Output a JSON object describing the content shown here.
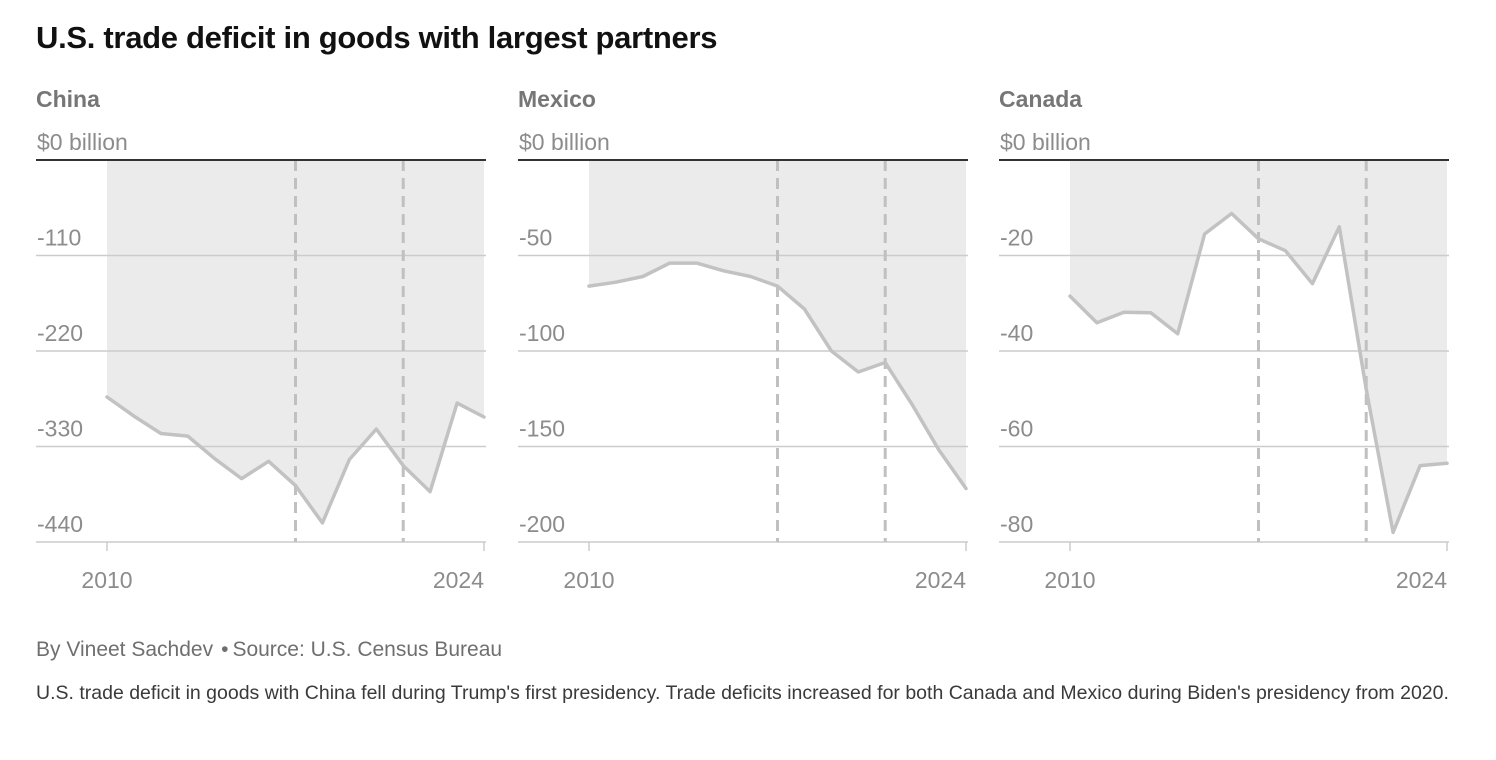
{
  "title": "U.S. trade deficit in goods with largest partners",
  "byline": {
    "author": "By Vineet Sachdev",
    "separator": "•",
    "source": "Source: U.S. Census Bureau"
  },
  "note": "U.S. trade deficit in goods with China fell during Trump's first presidency. Trade deficits increased for both Canada and Mexico during Biden's presidency from 2020.",
  "colors": {
    "line": "#c2c2c2",
    "area": "#ebebeb",
    "grid": "#cccccc",
    "zero": "#333333",
    "divider": "#c0c0c0"
  },
  "chart_data": [
    {
      "type": "line",
      "title": "China",
      "x": [
        2010,
        2011,
        2012,
        2013,
        2014,
        2015,
        2016,
        2017,
        2018,
        2019,
        2020,
        2021,
        2022,
        2023,
        2024
      ],
      "series": [
        {
          "values": [
            -273,
            -295,
            -315,
            -318,
            -344,
            -367,
            -347,
            -375,
            -418,
            -345,
            -310,
            -352,
            -382,
            -280,
            -296
          ]
        }
      ],
      "ylim": [
        -440,
        0
      ],
      "yticks": [
        0,
        -110,
        -220,
        -330,
        -440
      ],
      "ytick_labels": [
        "$0 billion",
        "-110",
        "-220",
        "-330",
        "-440"
      ],
      "xticks": [
        2010,
        2024
      ],
      "xtick_labels": [
        "2010",
        "2024"
      ],
      "reference_lines": [
        2017,
        2021
      ],
      "grid": true
    },
    {
      "type": "line",
      "title": "Mexico",
      "x": [
        2010,
        2011,
        2012,
        2013,
        2014,
        2015,
        2016,
        2017,
        2018,
        2019,
        2020,
        2021,
        2022,
        2023,
        2024
      ],
      "series": [
        {
          "values": [
            -66,
            -64,
            -61,
            -54,
            -54,
            -58,
            -61,
            -66,
            -78,
            -100,
            -111,
            -106,
            -128,
            -152,
            -172
          ]
        }
      ],
      "ylim": [
        -200,
        0
      ],
      "yticks": [
        0,
        -50,
        -100,
        -150,
        -200
      ],
      "ytick_labels": [
        "$0 billion",
        "-50",
        "-100",
        "-150",
        "-200"
      ],
      "xticks": [
        2010,
        2024
      ],
      "xtick_labels": [
        "2010",
        "2024"
      ],
      "reference_lines": [
        2017,
        2021
      ],
      "grid": true
    },
    {
      "type": "line",
      "title": "Canada",
      "x": [
        2010,
        2011,
        2012,
        2013,
        2014,
        2015,
        2016,
        2017,
        2018,
        2019,
        2020,
        2021,
        2022,
        2023,
        2024
      ],
      "series": [
        {
          "values": [
            -28.5,
            -34.1,
            -31.9,
            -32.0,
            -36.4,
            -15.5,
            -11.2,
            -16.5,
            -19.0,
            -25.9,
            -14.0,
            -48.0,
            -78.0,
            -64.0,
            -63.5
          ]
        }
      ],
      "ylim": [
        -80,
        0
      ],
      "yticks": [
        0,
        -20,
        -40,
        -60,
        -80
      ],
      "ytick_labels": [
        "$0 billion",
        "-20",
        "-40",
        "-60",
        "-80"
      ],
      "xticks": [
        2010,
        2024
      ],
      "xtick_labels": [
        "2010",
        "2024"
      ],
      "reference_lines": [
        2017,
        2021
      ],
      "grid": true
    }
  ]
}
